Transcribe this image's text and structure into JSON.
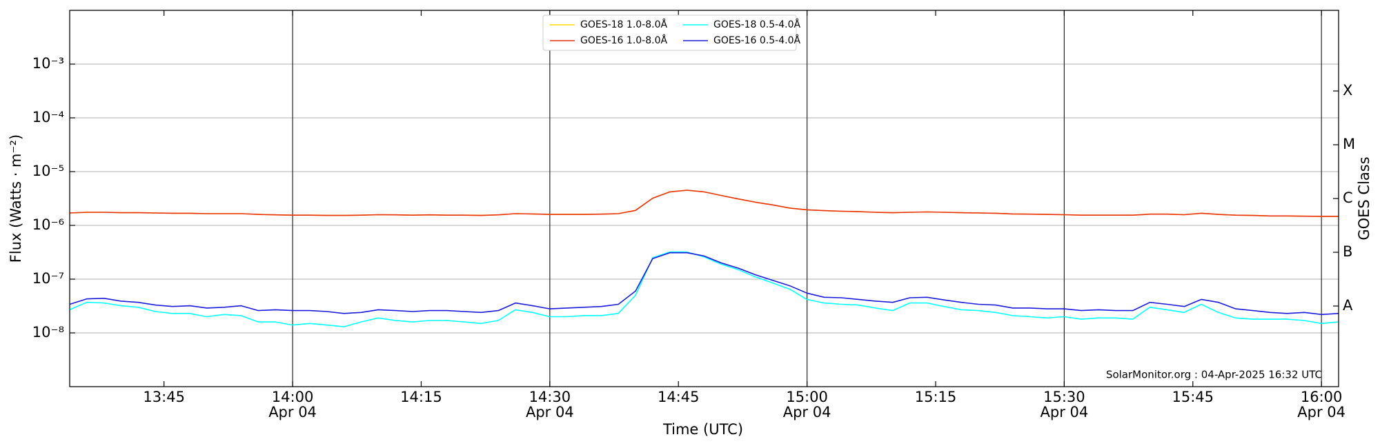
{
  "chart_data": {
    "type": "line",
    "xlabel": "Time (UTC)",
    "ylabel": "Flux (Watts · m⁻²)",
    "y2label": "GOES Class",
    "annotation": "SolarMonitor.org : 04-Apr-2025 16:32 UTC",
    "yscale": "log",
    "grid": true,
    "legend": "upper center",
    "xlim": [
      "13:34",
      "16:02"
    ],
    "xticks": [
      "13:45",
      "14:00",
      "14:15",
      "14:30",
      "14:45",
      "15:00",
      "15:15",
      "15:30",
      "15:45",
      "16:00"
    ],
    "xtick_dates": [
      null,
      "Apr 04",
      null,
      "Apr 04",
      null,
      "Apr 04",
      null,
      "Apr 04",
      null,
      "Apr 04"
    ],
    "ylim": [
      1e-09,
      0.01
    ],
    "yticks": [
      {
        "value": 1e-08,
        "label": "10⁻⁸"
      },
      {
        "value": 1e-07,
        "label": "10⁻⁷"
      },
      {
        "value": 1e-06,
        "label": "10⁻⁶"
      },
      {
        "value": 1e-05,
        "label": "10⁻⁵"
      },
      {
        "value": 0.0001,
        "label": "10⁻⁴"
      },
      {
        "value": 0.001,
        "label": "10⁻³"
      }
    ],
    "y2lim": [
      1e-09,
      0.01
    ],
    "y2ticks": [
      {
        "value": 3.16e-08,
        "label": "A"
      },
      {
        "value": 3.16e-07,
        "label": "B"
      },
      {
        "value": 3.16e-06,
        "label": "C"
      },
      {
        "value": 3.16e-05,
        "label": "M"
      },
      {
        "value": 0.000316,
        "label": "X"
      }
    ],
    "x": [
      "13:34",
      "13:36",
      "13:38",
      "13:40",
      "13:42",
      "13:44",
      "13:46",
      "13:48",
      "13:50",
      "13:52",
      "13:54",
      "13:56",
      "13:58",
      "14:00",
      "14:02",
      "14:04",
      "14:06",
      "14:08",
      "14:10",
      "14:12",
      "14:14",
      "14:16",
      "14:18",
      "14:20",
      "14:22",
      "14:24",
      "14:26",
      "14:28",
      "14:30",
      "14:32",
      "14:34",
      "14:36",
      "14:38",
      "14:40",
      "14:42",
      "14:44",
      "14:46",
      "14:48",
      "14:50",
      "14:52",
      "14:54",
      "14:56",
      "14:58",
      "15:00",
      "15:02",
      "15:04",
      "15:06",
      "15:08",
      "15:10",
      "15:12",
      "15:14",
      "15:16",
      "15:18",
      "15:20",
      "15:22",
      "15:24",
      "15:26",
      "15:28",
      "15:30",
      "15:32",
      "15:34",
      "15:36",
      "15:38",
      "15:40",
      "15:42",
      "15:44",
      "15:46",
      "15:48",
      "15:50",
      "15:52",
      "15:54",
      "15:56",
      "15:58",
      "16:00",
      "16:02"
    ],
    "series": [
      {
        "name": "GOES-18 1.0-8.0Å",
        "color": "#ffd700",
        "values": [
          1.7e-06,
          1.75e-06,
          1.75e-06,
          1.72e-06,
          1.72e-06,
          1.7e-06,
          1.68e-06,
          1.68e-06,
          1.65e-06,
          1.65e-06,
          1.65e-06,
          1.6e-06,
          1.57e-06,
          1.55e-06,
          1.55e-06,
          1.53e-06,
          1.53e-06,
          1.55e-06,
          1.58e-06,
          1.57e-06,
          1.55e-06,
          1.57e-06,
          1.55e-06,
          1.55e-06,
          1.53e-06,
          1.57e-06,
          1.65e-06,
          1.63e-06,
          1.6e-06,
          1.6e-06,
          1.6e-06,
          1.62e-06,
          1.65e-06,
          1.9e-06,
          3.2e-06,
          4.2e-06,
          4.5e-06,
          4.2e-06,
          3.6e-06,
          3.1e-06,
          2.7e-06,
          2.4e-06,
          2.1e-06,
          1.95e-06,
          1.88e-06,
          1.83e-06,
          1.8e-06,
          1.75e-06,
          1.72e-06,
          1.75e-06,
          1.78e-06,
          1.75e-06,
          1.72e-06,
          1.7e-06,
          1.68e-06,
          1.63e-06,
          1.62e-06,
          1.6e-06,
          1.58e-06,
          1.55e-06,
          1.55e-06,
          1.55e-06,
          1.55e-06,
          1.62e-06,
          1.62e-06,
          1.58e-06,
          1.68e-06,
          1.6e-06,
          1.55e-06,
          1.53e-06,
          1.5e-06,
          1.5e-06,
          1.48e-06,
          1.47e-06,
          1.47e-06
        ]
      },
      {
        "name": "GOES-16 1.0-8.0Å",
        "color": "#e8300e",
        "values": [
          1.7e-06,
          1.75e-06,
          1.75e-06,
          1.72e-06,
          1.72e-06,
          1.7e-06,
          1.68e-06,
          1.68e-06,
          1.65e-06,
          1.65e-06,
          1.65e-06,
          1.6e-06,
          1.57e-06,
          1.55e-06,
          1.55e-06,
          1.53e-06,
          1.53e-06,
          1.55e-06,
          1.58e-06,
          1.57e-06,
          1.55e-06,
          1.57e-06,
          1.55e-06,
          1.55e-06,
          1.53e-06,
          1.57e-06,
          1.65e-06,
          1.63e-06,
          1.6e-06,
          1.6e-06,
          1.6e-06,
          1.62e-06,
          1.65e-06,
          1.9e-06,
          3.2e-06,
          4.2e-06,
          4.5e-06,
          4.2e-06,
          3.6e-06,
          3.1e-06,
          2.7e-06,
          2.4e-06,
          2.1e-06,
          1.95e-06,
          1.88e-06,
          1.83e-06,
          1.8e-06,
          1.75e-06,
          1.72e-06,
          1.75e-06,
          1.78e-06,
          1.75e-06,
          1.72e-06,
          1.7e-06,
          1.68e-06,
          1.63e-06,
          1.62e-06,
          1.6e-06,
          1.58e-06,
          1.55e-06,
          1.55e-06,
          1.55e-06,
          1.55e-06,
          1.62e-06,
          1.62e-06,
          1.58e-06,
          1.68e-06,
          1.6e-06,
          1.55e-06,
          1.53e-06,
          1.5e-06,
          1.5e-06,
          1.48e-06,
          1.47e-06,
          1.47e-06
        ]
      },
      {
        "name": "GOES-18 0.5-4.0Å",
        "color": "#00ffff",
        "values": [
          2.7e-08,
          3.7e-08,
          3.6e-08,
          3.2e-08,
          3e-08,
          2.5e-08,
          2.3e-08,
          2.3e-08,
          2e-08,
          2.2e-08,
          2.1e-08,
          1.6e-08,
          1.6e-08,
          1.4e-08,
          1.5e-08,
          1.4e-08,
          1.3e-08,
          1.6e-08,
          1.9e-08,
          1.7e-08,
          1.6e-08,
          1.7e-08,
          1.7e-08,
          1.6e-08,
          1.5e-08,
          1.7e-08,
          2.7e-08,
          2.4e-08,
          2e-08,
          2e-08,
          2.1e-08,
          2.1e-08,
          2.3e-08,
          5e-08,
          2.5e-07,
          3.2e-07,
          3.2e-07,
          2.6e-07,
          1.9e-07,
          1.5e-07,
          1.1e-07,
          8.5e-08,
          6.5e-08,
          4.2e-08,
          3.6e-08,
          3.4e-08,
          3.3e-08,
          2.9e-08,
          2.6e-08,
          3.6e-08,
          3.6e-08,
          3.1e-08,
          2.7e-08,
          2.6e-08,
          2.4e-08,
          2.1e-08,
          2e-08,
          1.9e-08,
          2e-08,
          1.8e-08,
          1.9e-08,
          1.9e-08,
          1.8e-08,
          3e-08,
          2.7e-08,
          2.4e-08,
          3.4e-08,
          2.4e-08,
          1.9e-08,
          1.8e-08,
          1.8e-08,
          1.8e-08,
          1.7e-08,
          1.5e-08,
          1.6e-08
        ]
      },
      {
        "name": "GOES-16 0.5-4.0Å",
        "color": "#1a1adc",
        "values": [
          3.4e-08,
          4.3e-08,
          4.4e-08,
          3.9e-08,
          3.7e-08,
          3.3e-08,
          3.1e-08,
          3.2e-08,
          2.9e-08,
          3e-08,
          3.2e-08,
          2.6e-08,
          2.7e-08,
          2.6e-08,
          2.6e-08,
          2.5e-08,
          2.3e-08,
          2.4e-08,
          2.7e-08,
          2.6e-08,
          2.5e-08,
          2.6e-08,
          2.6e-08,
          2.5e-08,
          2.4e-08,
          2.6e-08,
          3.6e-08,
          3.2e-08,
          2.8e-08,
          2.9e-08,
          3e-08,
          3.1e-08,
          3.4e-08,
          6e-08,
          2.4e-07,
          3.1e-07,
          3.1e-07,
          2.7e-07,
          2e-07,
          1.6e-07,
          1.2e-07,
          9.5e-08,
          7.5e-08,
          5.5e-08,
          4.6e-08,
          4.5e-08,
          4.2e-08,
          3.9e-08,
          3.7e-08,
          4.5e-08,
          4.6e-08,
          4.1e-08,
          3.7e-08,
          3.4e-08,
          3.3e-08,
          2.9e-08,
          2.9e-08,
          2.8e-08,
          2.8e-08,
          2.6e-08,
          2.7e-08,
          2.6e-08,
          2.6e-08,
          3.7e-08,
          3.4e-08,
          3.1e-08,
          4.2e-08,
          3.7e-08,
          2.8e-08,
          2.6e-08,
          2.4e-08,
          2.3e-08,
          2.4e-08,
          2.2e-08,
          2.3e-08
        ]
      }
    ]
  }
}
